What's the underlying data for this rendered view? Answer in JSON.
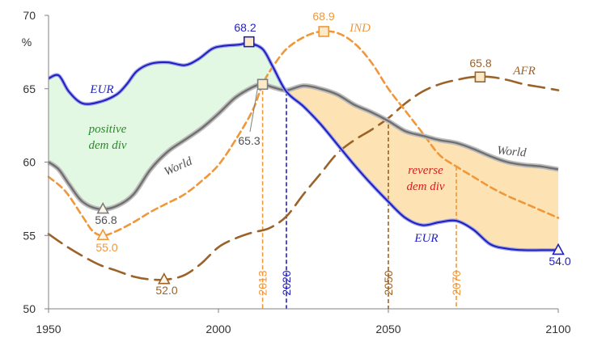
{
  "chart_data": {
    "type": "line",
    "xlim": [
      1950,
      2100
    ],
    "ylim": [
      50,
      70
    ],
    "x_ticks": [
      "1950",
      "2000",
      "2050",
      "2100"
    ],
    "y_ticks": [
      "50",
      "55",
      "60",
      "65",
      "70"
    ],
    "y_unit": "%",
    "grid": false,
    "series": [
      {
        "name": "EUR",
        "color": "#1f1fbf",
        "style": "solid",
        "points": [
          [
            1950,
            65.7
          ],
          [
            1953,
            65.9
          ],
          [
            1956,
            64.8
          ],
          [
            1960,
            64.0
          ],
          [
            1965,
            64.1
          ],
          [
            1970,
            64.6
          ],
          [
            1973,
            65.3
          ],
          [
            1976,
            66.2
          ],
          [
            1980,
            66.7
          ],
          [
            1985,
            66.8
          ],
          [
            1990,
            66.6
          ],
          [
            1994,
            67.0
          ],
          [
            1998,
            67.7
          ],
          [
            2001,
            67.9
          ],
          [
            2006,
            68.0
          ],
          [
            2009,
            68.1
          ],
          [
            2013,
            67.7
          ],
          [
            2016,
            66.5
          ],
          [
            2020,
            64.8
          ],
          [
            2025,
            63.8
          ],
          [
            2030,
            62.6
          ],
          [
            2035,
            61.2
          ],
          [
            2040,
            59.8
          ],
          [
            2045,
            58.5
          ],
          [
            2050,
            57.3
          ],
          [
            2055,
            56.2
          ],
          [
            2060,
            55.7
          ],
          [
            2065,
            55.9
          ],
          [
            2070,
            56.0
          ],
          [
            2075,
            55.4
          ],
          [
            2080,
            54.4
          ],
          [
            2085,
            54.1
          ],
          [
            2090,
            54.0
          ],
          [
            2095,
            54.0
          ],
          [
            2100,
            54.0
          ]
        ]
      },
      {
        "name": "World",
        "color": "#7f7f7f",
        "style": "solid",
        "points": [
          [
            1950,
            60.0
          ],
          [
            1953,
            59.5
          ],
          [
            1956,
            58.5
          ],
          [
            1960,
            57.3
          ],
          [
            1965,
            56.8
          ],
          [
            1970,
            57.0
          ],
          [
            1975,
            57.8
          ],
          [
            1980,
            59.5
          ],
          [
            1985,
            60.7
          ],
          [
            1990,
            61.5
          ],
          [
            1995,
            62.3
          ],
          [
            2000,
            63.3
          ],
          [
            2005,
            64.4
          ],
          [
            2010,
            65.1
          ],
          [
            2013,
            65.3
          ],
          [
            2016,
            65.1
          ],
          [
            2020,
            64.9
          ],
          [
            2025,
            65.2
          ],
          [
            2030,
            65.0
          ],
          [
            2035,
            64.6
          ],
          [
            2040,
            63.9
          ],
          [
            2045,
            63.4
          ],
          [
            2050,
            62.8
          ],
          [
            2055,
            62.1
          ],
          [
            2060,
            61.8
          ],
          [
            2065,
            61.5
          ],
          [
            2070,
            61.3
          ],
          [
            2075,
            60.9
          ],
          [
            2080,
            60.4
          ],
          [
            2085,
            60.0
          ],
          [
            2090,
            59.8
          ],
          [
            2095,
            59.7
          ],
          [
            2100,
            59.5
          ]
        ]
      },
      {
        "name": "IND",
        "color": "#f0973a",
        "style": "dash",
        "points": [
          [
            1950,
            59.0
          ],
          [
            1955,
            58.0
          ],
          [
            1960,
            56.3
          ],
          [
            1963,
            55.3
          ],
          [
            1966,
            55.0
          ],
          [
            1970,
            55.3
          ],
          [
            1975,
            55.9
          ],
          [
            1980,
            56.6
          ],
          [
            1985,
            57.2
          ],
          [
            1990,
            57.8
          ],
          [
            1995,
            58.7
          ],
          [
            2000,
            59.8
          ],
          [
            2005,
            61.5
          ],
          [
            2010,
            63.5
          ],
          [
            2013,
            65.3
          ],
          [
            2016,
            66.5
          ],
          [
            2020,
            67.7
          ],
          [
            2025,
            68.5
          ],
          [
            2030,
            68.9
          ],
          [
            2035,
            68.8
          ],
          [
            2040,
            68.1
          ],
          [
            2045,
            66.8
          ],
          [
            2050,
            65.0
          ],
          [
            2055,
            63.5
          ],
          [
            2060,
            62.0
          ],
          [
            2065,
            60.5
          ],
          [
            2070,
            59.7
          ],
          [
            2075,
            59.0
          ],
          [
            2080,
            58.3
          ],
          [
            2085,
            57.7
          ],
          [
            2090,
            57.2
          ],
          [
            2095,
            56.7
          ],
          [
            2100,
            56.2
          ]
        ]
      },
      {
        "name": "AFR",
        "color": "#9c6228",
        "style": "longdash",
        "points": [
          [
            1950,
            55.1
          ],
          [
            1955,
            54.3
          ],
          [
            1960,
            53.6
          ],
          [
            1965,
            53.0
          ],
          [
            1970,
            52.6
          ],
          [
            1975,
            52.2
          ],
          [
            1980,
            52.0
          ],
          [
            1985,
            52.0
          ],
          [
            1990,
            52.3
          ],
          [
            1995,
            53.1
          ],
          [
            2000,
            54.2
          ],
          [
            2005,
            54.8
          ],
          [
            2010,
            55.2
          ],
          [
            2015,
            55.5
          ],
          [
            2020,
            56.3
          ],
          [
            2025,
            57.8
          ],
          [
            2030,
            59.2
          ],
          [
            2035,
            60.6
          ],
          [
            2040,
            61.5
          ],
          [
            2045,
            62.2
          ],
          [
            2050,
            63.0
          ],
          [
            2055,
            64.0
          ],
          [
            2060,
            64.8
          ],
          [
            2065,
            65.3
          ],
          [
            2070,
            65.6
          ],
          [
            2075,
            65.8
          ],
          [
            2080,
            65.8
          ],
          [
            2085,
            65.6
          ],
          [
            2090,
            65.3
          ],
          [
            2095,
            65.1
          ],
          [
            2100,
            64.9
          ]
        ]
      }
    ],
    "markers": [
      {
        "series": "EUR",
        "x": 2009,
        "y": 68.2,
        "shape": "square",
        "label": "68.2",
        "color": "#1f1fbf"
      },
      {
        "series": "IND",
        "x": 2031,
        "y": 68.9,
        "shape": "square",
        "label": "68.9",
        "color": "#f0973a"
      },
      {
        "series": "AFR",
        "x": 2077,
        "y": 65.8,
        "shape": "square",
        "label": "65.8",
        "color": "#9c6228"
      },
      {
        "series": "World",
        "x": 2013,
        "y": 65.3,
        "shape": "square",
        "label": "65.3",
        "color": "#7f7f7f"
      },
      {
        "series": "World",
        "x": 1966,
        "y": 56.8,
        "shape": "triangle",
        "label": "56.8",
        "color": "#7f7f7f"
      },
      {
        "series": "IND",
        "x": 1966,
        "y": 55.0,
        "shape": "triangle",
        "label": "55.0",
        "color": "#f0973a"
      },
      {
        "series": "AFR",
        "x": 1984,
        "y": 52.0,
        "shape": "triangle",
        "label": "52.0",
        "color": "#9c6228"
      },
      {
        "series": "EUR",
        "x": 2100,
        "y": 54.0,
        "shape": "triangle",
        "label": "54.0",
        "color": "#1f1fbf"
      }
    ],
    "vlines": [
      {
        "x": 2013,
        "label": "2013",
        "color": "#f0973a"
      },
      {
        "x": 2020,
        "label": "2020",
        "color": "#1f1fbf"
      },
      {
        "x": 2050,
        "label": "2050",
        "color": "#9c6228"
      },
      {
        "x": 2070,
        "label": "2070",
        "color": "#f0973a"
      }
    ],
    "regions": [
      {
        "name": "positive dem div",
        "from": 1950,
        "to": 2020,
        "upper": "EUR",
        "lower": "World",
        "color": "#e3f8e3"
      },
      {
        "name": "reverse dem div",
        "from": 2020,
        "to": 2100,
        "upper": "World",
        "lower": "EUR",
        "color": "#fde3b3"
      }
    ],
    "annotations": {
      "positive": [
        "positive",
        "dem div"
      ],
      "reverse": [
        "reverse",
        "dem div"
      ]
    }
  }
}
